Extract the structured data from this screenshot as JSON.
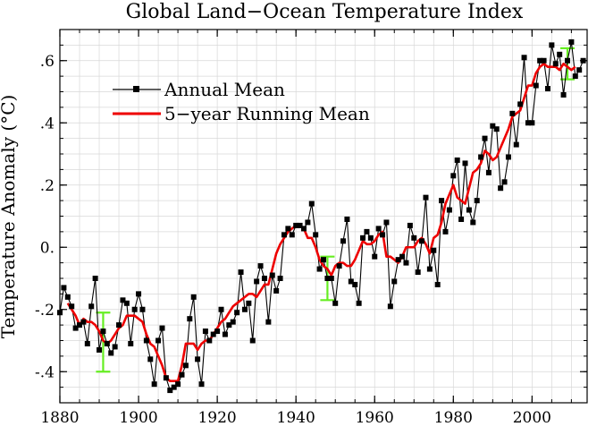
{
  "chart_data": {
    "type": "line",
    "title": "Global Land−Ocean Temperature Index",
    "xlabel": "",
    "ylabel": "Temperature Anomaly (°C)",
    "xlim": [
      1880,
      2014
    ],
    "ylim": [
      -0.5,
      0.7
    ],
    "x_ticks": [
      1880,
      1900,
      1920,
      1940,
      1960,
      1980,
      2000
    ],
    "x_tick_labels": [
      "1880",
      "1900",
      "1920",
      "1940",
      "1960",
      "1980",
      "2000"
    ],
    "y_ticks": [
      -0.4,
      -0.2,
      0.0,
      0.2,
      0.4,
      0.6
    ],
    "y_tick_labels": [
      "-.4",
      "-.2",
      "0.",
      ".2",
      ".4",
      ".6"
    ],
    "grid": true,
    "legend_position": "upper-left",
    "series": [
      {
        "name": "Annual Mean",
        "color": "#000000",
        "marker": "square",
        "x": [
          1880,
          1881,
          1882,
          1883,
          1884,
          1885,
          1886,
          1887,
          1888,
          1889,
          1890,
          1891,
          1892,
          1893,
          1894,
          1895,
          1896,
          1897,
          1898,
          1899,
          1900,
          1901,
          1902,
          1903,
          1904,
          1905,
          1906,
          1907,
          1908,
          1909,
          1910,
          1911,
          1912,
          1913,
          1914,
          1915,
          1916,
          1917,
          1918,
          1919,
          1920,
          1921,
          1922,
          1923,
          1924,
          1925,
          1926,
          1927,
          1928,
          1929,
          1930,
          1931,
          1932,
          1933,
          1934,
          1935,
          1936,
          1937,
          1938,
          1939,
          1940,
          1941,
          1942,
          1943,
          1944,
          1945,
          1946,
          1947,
          1948,
          1949,
          1950,
          1951,
          1952,
          1953,
          1954,
          1955,
          1956,
          1957,
          1958,
          1959,
          1960,
          1961,
          1962,
          1963,
          1964,
          1965,
          1966,
          1967,
          1968,
          1969,
          1970,
          1971,
          1972,
          1973,
          1974,
          1975,
          1976,
          1977,
          1978,
          1979,
          1980,
          1981,
          1982,
          1983,
          1984,
          1985,
          1986,
          1987,
          1988,
          1989,
          1990,
          1991,
          1992,
          1993,
          1994,
          1995,
          1996,
          1997,
          1998,
          1999,
          2000,
          2001,
          2002,
          2003,
          2004,
          2005,
          2006,
          2007,
          2008,
          2009,
          2010,
          2011,
          2012,
          2013
        ],
        "values": [
          -0.21,
          -0.13,
          -0.16,
          -0.19,
          -0.26,
          -0.25,
          -0.24,
          -0.31,
          -0.19,
          -0.1,
          -0.33,
          -0.27,
          -0.31,
          -0.34,
          -0.32,
          -0.25,
          -0.17,
          -0.18,
          -0.31,
          -0.2,
          -0.15,
          -0.2,
          -0.3,
          -0.36,
          -0.44,
          -0.3,
          -0.26,
          -0.42,
          -0.46,
          -0.45,
          -0.44,
          -0.41,
          -0.38,
          -0.23,
          -0.16,
          -0.36,
          -0.44,
          -0.27,
          -0.3,
          -0.28,
          -0.27,
          -0.2,
          -0.28,
          -0.25,
          -0.24,
          -0.21,
          -0.08,
          -0.2,
          -0.18,
          -0.3,
          -0.11,
          -0.06,
          -0.1,
          -0.24,
          -0.09,
          -0.14,
          -0.1,
          0.04,
          0.06,
          0.04,
          0.07,
          0.07,
          0.06,
          0.08,
          0.14,
          0.04,
          -0.07,
          -0.04,
          -0.1,
          -0.1,
          -0.18,
          -0.06,
          0.02,
          0.09,
          -0.11,
          -0.12,
          -0.18,
          0.03,
          0.05,
          0.03,
          -0.03,
          0.06,
          0.04,
          0.08,
          -0.19,
          -0.11,
          -0.04,
          -0.03,
          -0.05,
          0.07,
          0.03,
          -0.08,
          0.02,
          0.16,
          -0.07,
          -0.01,
          -0.12,
          0.15,
          0.05,
          0.12,
          0.23,
          0.28,
          0.09,
          0.27,
          0.12,
          0.08,
          0.15,
          0.29,
          0.35,
          0.24,
          0.39,
          0.38,
          0.19,
          0.21,
          0.29,
          0.43,
          0.33,
          0.46,
          0.61,
          0.4,
          0.4,
          0.52,
          0.6,
          0.6,
          0.51,
          0.65,
          0.59,
          0.62,
          0.49,
          0.6,
          0.66,
          0.55,
          0.57,
          0.6
        ]
      },
      {
        "name": "5−year Running Mean",
        "color": "#ee0000",
        "marker": "none",
        "x": [
          1882,
          1883,
          1884,
          1885,
          1886,
          1887,
          1888,
          1889,
          1890,
          1891,
          1892,
          1893,
          1894,
          1895,
          1896,
          1897,
          1898,
          1899,
          1900,
          1901,
          1902,
          1903,
          1904,
          1905,
          1906,
          1907,
          1908,
          1909,
          1910,
          1911,
          1912,
          1913,
          1914,
          1915,
          1916,
          1917,
          1918,
          1919,
          1920,
          1921,
          1922,
          1923,
          1924,
          1925,
          1926,
          1927,
          1928,
          1929,
          1930,
          1931,
          1932,
          1933,
          1934,
          1935,
          1936,
          1937,
          1938,
          1939,
          1940,
          1941,
          1942,
          1943,
          1944,
          1945,
          1946,
          1947,
          1948,
          1949,
          1950,
          1951,
          1952,
          1953,
          1954,
          1955,
          1956,
          1957,
          1958,
          1959,
          1960,
          1961,
          1962,
          1963,
          1964,
          1965,
          1966,
          1967,
          1968,
          1969,
          1970,
          1971,
          1972,
          1973,
          1974,
          1975,
          1976,
          1977,
          1978,
          1979,
          1980,
          1981,
          1982,
          1983,
          1984,
          1985,
          1986,
          1987,
          1988,
          1989,
          1990,
          1991,
          1992,
          1993,
          1994,
          1995,
          1996,
          1997,
          1998,
          1999,
          2000,
          2001,
          2002,
          2003,
          2004,
          2005,
          2006,
          2007,
          2008,
          2009,
          2010,
          2011
        ],
        "values": [
          -0.18,
          -0.2,
          -0.22,
          -0.25,
          -0.23,
          -0.24,
          -0.24,
          -0.25,
          -0.27,
          -0.3,
          -0.31,
          -0.3,
          -0.28,
          -0.26,
          -0.25,
          -0.22,
          -0.22,
          -0.22,
          -0.23,
          -0.24,
          -0.28,
          -0.31,
          -0.32,
          -0.35,
          -0.38,
          -0.42,
          -0.43,
          -0.43,
          -0.43,
          -0.38,
          -0.31,
          -0.31,
          -0.31,
          -0.33,
          -0.31,
          -0.3,
          -0.3,
          -0.28,
          -0.26,
          -0.24,
          -0.23,
          -0.21,
          -0.19,
          -0.18,
          -0.17,
          -0.16,
          -0.15,
          -0.15,
          -0.16,
          -0.14,
          -0.12,
          -0.12,
          -0.07,
          -0.02,
          0.01,
          0.03,
          0.05,
          0.06,
          0.07,
          0.07,
          0.06,
          0.03,
          0.03,
          0.0,
          -0.04,
          -0.06,
          -0.07,
          -0.09,
          -0.06,
          -0.05,
          -0.05,
          -0.06,
          -0.06,
          -0.04,
          -0.01,
          0.02,
          0.01,
          0.01,
          0.02,
          0.04,
          0.05,
          -0.03,
          -0.03,
          -0.04,
          -0.05,
          -0.03,
          0.0,
          0.0,
          0.0,
          0.02,
          0.03,
          0.01,
          -0.02,
          0.03,
          0.04,
          0.08,
          0.14,
          0.17,
          0.2,
          0.16,
          0.15,
          0.14,
          0.19,
          0.24,
          0.25,
          0.27,
          0.31,
          0.3,
          0.28,
          0.29,
          0.32,
          0.35,
          0.38,
          0.42,
          0.43,
          0.44,
          0.48,
          0.52,
          0.52,
          0.56,
          0.58,
          0.59,
          0.58,
          0.58,
          0.58,
          0.57,
          0.59,
          0.58,
          0.57,
          0.58
        ]
      }
    ],
    "uncertainty_bars": [
      {
        "x": 1891,
        "low": -0.4,
        "high": -0.21
      },
      {
        "x": 1948,
        "low": -0.17,
        "high": -0.03
      },
      {
        "x": 2009,
        "low": 0.54,
        "high": 0.64
      }
    ],
    "uncertainty_color": "#66ee22"
  }
}
